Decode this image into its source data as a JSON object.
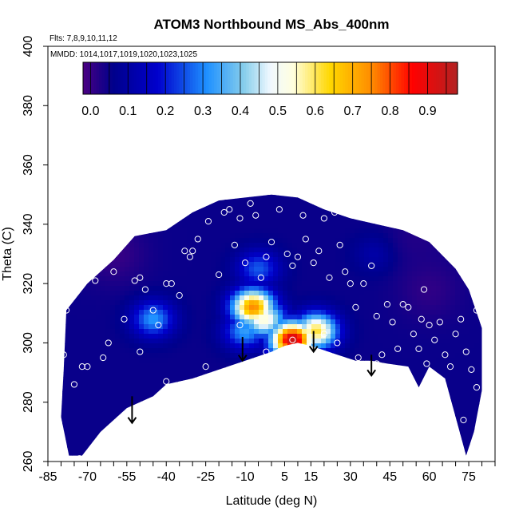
{
  "chart_data": {
    "type": "heatmap",
    "title": "ATOM3 Northbound MS_Abs_400nm",
    "flights_note": "Flts: 7,8,9,10,11,12",
    "mmdd_note": "MMDD: 1014,1017,1019,1020,1023,1025",
    "xlabel": "Latitude (deg N)",
    "ylabel": "Theta (C)",
    "xlim": [
      -85,
      85
    ],
    "ylim": [
      260,
      400
    ],
    "x_ticks": [
      "-85",
      "-70",
      "-55",
      "-40",
      "-25",
      "-10",
      "5",
      "15",
      "30",
      "45",
      "60",
      "75"
    ],
    "x_tick_values": [
      -85,
      -70,
      -55,
      -40,
      -25,
      -10,
      5,
      15,
      30,
      45,
      60,
      75
    ],
    "x_minor_step": 5,
    "y_ticks": [
      "260",
      "280",
      "300",
      "320",
      "340",
      "360",
      "380",
      "400"
    ],
    "y_tick_values": [
      260,
      280,
      300,
      320,
      340,
      360,
      380,
      400
    ],
    "colorbar": {
      "range": [
        -0.02,
        0.98
      ],
      "ticks": [
        "0.0",
        "0.1",
        "0.2",
        "0.3",
        "0.4",
        "0.5",
        "0.6",
        "0.7",
        "0.8",
        "0.9"
      ],
      "tick_values": [
        0.0,
        0.1,
        0.2,
        0.3,
        0.4,
        0.5,
        0.6,
        0.7,
        0.8,
        0.9
      ],
      "colors": [
        "#4b0082",
        "#00008b",
        "#0000cd",
        "#1e90ff",
        "#87ceeb",
        "#f0f8ff",
        "#ffffe0",
        "#ffd700",
        "#ff8c00",
        "#ff0000",
        "#b22222"
      ],
      "color_stops": [
        0.0,
        0.08,
        0.2,
        0.33,
        0.43,
        0.5,
        0.56,
        0.66,
        0.77,
        0.88,
        1.0
      ]
    },
    "field": {
      "background_value": 0.05,
      "high_value_regions": [
        {
          "lat": -7,
          "theta": 312,
          "value": 0.75
        },
        {
          "lat": -3,
          "theta": 308,
          "value": 0.55
        },
        {
          "lat": -10,
          "theta": 304,
          "value": 0.33
        },
        {
          "lat": 17,
          "theta": 304,
          "value": 0.62
        },
        {
          "lat": 8,
          "theta": 301,
          "value": 0.95
        },
        {
          "lat": -45,
          "theta": 308,
          "value": 0.32
        },
        {
          "lat": -5,
          "theta": 325,
          "value": 0.26
        },
        {
          "lat": 40,
          "theta": 330,
          "value": 0.12
        }
      ],
      "low_value_regions": [
        {
          "lat": -60,
          "theta": 330,
          "value": -0.01
        },
        {
          "lat": 60,
          "theta": 318,
          "value": 0.0
        },
        {
          "lat": 55,
          "theta": 335,
          "value": 0.02
        }
      ],
      "boundary": [
        [
          -79,
          291
        ],
        [
          -78,
          311
        ],
        [
          -70,
          320
        ],
        [
          -60,
          328
        ],
        [
          -52,
          336
        ],
        [
          -40,
          338
        ],
        [
          -30,
          344
        ],
        [
          -20,
          348
        ],
        [
          -10,
          349
        ],
        [
          0,
          350
        ],
        [
          10,
          349
        ],
        [
          20,
          345
        ],
        [
          30,
          342
        ],
        [
          40,
          340
        ],
        [
          50,
          338
        ],
        [
          60,
          334
        ],
        [
          70,
          325
        ],
        [
          75,
          318
        ],
        [
          80,
          305
        ],
        [
          80,
          284
        ],
        [
          77,
          270
        ],
        [
          74,
          262
        ],
        [
          70,
          275
        ],
        [
          66,
          288
        ],
        [
          60,
          292
        ],
        [
          56,
          285
        ],
        [
          52,
          292
        ],
        [
          44,
          293
        ],
        [
          38,
          294
        ],
        [
          32,
          294
        ],
        [
          25,
          296
        ],
        [
          15,
          299
        ],
        [
          10,
          300
        ],
        [
          5,
          299
        ],
        [
          0,
          297
        ],
        [
          -10,
          294
        ],
        [
          -20,
          291
        ],
        [
          -30,
          288
        ],
        [
          -40,
          286
        ],
        [
          -45,
          282
        ],
        [
          -55,
          278
        ],
        [
          -65,
          270
        ],
        [
          -72,
          262
        ],
        [
          -77,
          262
        ],
        [
          -80,
          275
        ]
      ]
    },
    "measurement_points": [
      [
        -79,
        296
      ],
      [
        -78,
        311
      ],
      [
        -75,
        286
      ],
      [
        -73,
        261
      ],
      [
        -72,
        292
      ],
      [
        -70,
        292
      ],
      [
        -67,
        321
      ],
      [
        -64,
        295
      ],
      [
        -62,
        300
      ],
      [
        -60,
        324
      ],
      [
        -56,
        308
      ],
      [
        -52,
        321
      ],
      [
        -50,
        322
      ],
      [
        -48,
        318
      ],
      [
        -45,
        311
      ],
      [
        -43,
        306
      ],
      [
        -40,
        320
      ],
      [
        -38,
        320
      ],
      [
        -35,
        316
      ],
      [
        -33,
        331
      ],
      [
        -31,
        329
      ],
      [
        -30,
        331
      ],
      [
        -28,
        335
      ],
      [
        -24,
        341
      ],
      [
        -20,
        323
      ],
      [
        -18,
        344
      ],
      [
        -16,
        345
      ],
      [
        -14,
        333
      ],
      [
        -12,
        342
      ],
      [
        -10,
        327
      ],
      [
        -8,
        347
      ],
      [
        -6,
        343
      ],
      [
        -4,
        322
      ],
      [
        -2,
        329
      ],
      [
        0,
        334
      ],
      [
        3,
        345
      ],
      [
        6,
        330
      ],
      [
        8,
        326
      ],
      [
        10,
        329
      ],
      [
        12,
        343
      ],
      [
        13,
        335
      ],
      [
        16,
        327
      ],
      [
        18,
        331
      ],
      [
        20,
        342
      ],
      [
        22,
        322
      ],
      [
        24,
        344
      ],
      [
        26,
        333
      ],
      [
        28,
        324
      ],
      [
        30,
        320
      ],
      [
        32,
        312
      ],
      [
        35,
        320
      ],
      [
        38,
        326
      ],
      [
        40,
        309
      ],
      [
        42,
        296
      ],
      [
        44,
        313
      ],
      [
        46,
        307
      ],
      [
        48,
        298
      ],
      [
        50,
        313
      ],
      [
        52,
        312
      ],
      [
        54,
        303
      ],
      [
        56,
        298
      ],
      [
        57,
        308
      ],
      [
        58,
        318
      ],
      [
        59,
        293
      ],
      [
        60,
        306
      ],
      [
        62,
        301
      ],
      [
        64,
        307
      ],
      [
        66,
        296
      ],
      [
        68,
        292
      ],
      [
        70,
        303
      ],
      [
        72,
        308
      ],
      [
        74,
        297
      ],
      [
        76,
        291
      ],
      [
        78,
        285
      ],
      [
        8,
        301
      ],
      [
        15,
        299
      ],
      [
        25,
        300
      ],
      [
        33,
        295
      ],
      [
        -2,
        297
      ],
      [
        -12,
        306
      ],
      [
        -25,
        292
      ],
      [
        -40,
        287
      ],
      [
        -58,
        269
      ],
      [
        -50,
        297
      ],
      [
        -68,
        263
      ],
      [
        12,
        288
      ],
      [
        20,
        303
      ],
      [
        40,
        293
      ],
      [
        50,
        291
      ],
      [
        57,
        282
      ],
      [
        62,
        284
      ],
      [
        65,
        279
      ],
      [
        73,
        274
      ],
      [
        78,
        311
      ]
    ],
    "arrows": [
      {
        "lat": -53,
        "theta": 282,
        "length": 9
      },
      {
        "lat": -11,
        "theta": 302,
        "length": 8
      },
      {
        "lat": 16,
        "theta": 304,
        "length": 7
      },
      {
        "lat": 38,
        "theta": 296,
        "length": 7
      }
    ]
  }
}
